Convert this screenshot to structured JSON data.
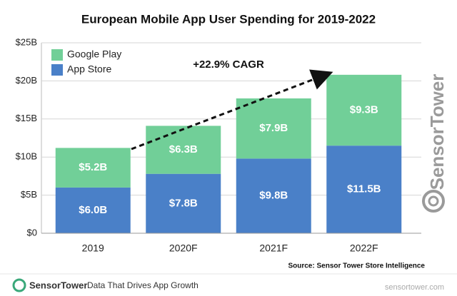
{
  "chart_data": {
    "type": "bar",
    "stacked": true,
    "title": "European Mobile App User Spending for 2019-2022",
    "categories": [
      "2019",
      "2020F",
      "2021F",
      "2022F"
    ],
    "series": [
      {
        "name": "App Store",
        "color": "#4a80c8",
        "values": [
          6.0,
          7.8,
          9.8,
          11.5
        ],
        "value_labels": [
          "$6.0B",
          "$7.8B",
          "$9.8B",
          "$11.5B"
        ]
      },
      {
        "name": "Google Play",
        "color": "#71cf98",
        "values": [
          5.2,
          6.3,
          7.9,
          9.3
        ],
        "value_labels": [
          "$5.2B",
          "$6.3B",
          "$7.9B",
          "$9.3B"
        ]
      }
    ],
    "ylim": [
      0,
      25
    ],
    "yticks": [
      {
        "value": 0,
        "label": "$0"
      },
      {
        "value": 5,
        "label": "$5B"
      },
      {
        "value": 10,
        "label": "$10B"
      },
      {
        "value": 15,
        "label": "$15B"
      },
      {
        "value": 20,
        "label": "$20B"
      },
      {
        "value": 25,
        "label": "$25B"
      }
    ],
    "grid": true,
    "annotation": "+22.9% CAGR",
    "source": "Source: Sensor Tower Store Intelligence"
  },
  "footer": {
    "brand": "SensorTower",
    "tagline": "Data That Drives App Growth"
  },
  "watermark": {
    "brand": "SensorTower",
    "site": "sensortower.com"
  }
}
